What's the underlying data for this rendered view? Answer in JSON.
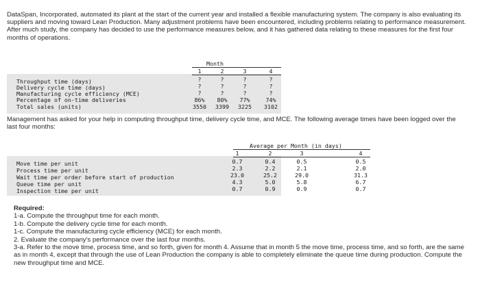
{
  "intro": "DataSpan, Incorporated, automated its plant at the start of the current year and installed a flexible manufacturing system. The company is also evaluating its suppliers and moving toward Lean Production. Many adjustment problems have been encountered, including problems relating to performance measurement. After much study, the company has decided to use the performance measures below, and it has gathered data relating to these measures for the first four months of operations.",
  "table1": {
    "group_header": "Month",
    "columns": [
      "1",
      "2",
      "3",
      "4"
    ],
    "rows": [
      {
        "label": "Throughput time (days)",
        "values": [
          "?",
          "?",
          "?",
          "?"
        ]
      },
      {
        "label": "Delivery cycle time (days)",
        "values": [
          "?",
          "?",
          "?",
          "?"
        ]
      },
      {
        "label": "Manufacturing cycle efficiency (MCE)",
        "values": [
          "?",
          "?",
          "?",
          "?"
        ]
      },
      {
        "label": "Percentage of on-time deliveries",
        "values": [
          "86%",
          "80%",
          "77%",
          "74%"
        ]
      },
      {
        "label": "Total sales (units)",
        "values": [
          "3550",
          "3399",
          "3225",
          "3102"
        ]
      }
    ]
  },
  "management_note": "Management has asked for your help in computing throughput time, delivery cycle time, and MCE. The following average times have been logged over the last four months:",
  "table2": {
    "group_header": "Average per Month (in days)",
    "columns": [
      "1",
      "2",
      "3",
      "4"
    ],
    "rows": [
      {
        "label": "Move time per unit",
        "values": [
          "0.7",
          "0.4",
          "0.5",
          "0.5"
        ]
      },
      {
        "label": "Process time per unit",
        "values": [
          "2.3",
          "2.2",
          "2.1",
          "2.0"
        ]
      },
      {
        "label": "Wait time per order before start of production",
        "values": [
          "23.0",
          "25.2",
          "29.0",
          "31.3"
        ]
      },
      {
        "label": "Queue time per unit",
        "values": [
          "4.3",
          "5.0",
          "5.8",
          "6.7"
        ]
      },
      {
        "label": "Inspection time per unit",
        "values": [
          "0.7",
          "0.9",
          "0.9",
          "0.7"
        ]
      }
    ]
  },
  "required": {
    "heading": "Required:",
    "items": [
      "1-a. Compute the throughput time for each month.",
      "1-b. Compute the delivery cycle time for each month.",
      "1-c. Compute the manufacturing cycle efficiency (MCE) for each month.",
      "2. Evaluate the company's performance over the last four months.",
      "3-a. Refer to the move time, process time, and so forth, given for month 4. Assume that in month 5 the move time, process time, and so forth, are the same as in month 4, except that through the use of Lean Production the company is able to completely eliminate the queue time during production. Compute the new throughput time and MCE."
    ]
  }
}
